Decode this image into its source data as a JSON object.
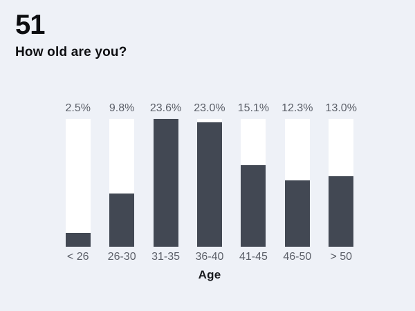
{
  "page": {
    "background_color": "#eef1f7"
  },
  "header": {
    "question_number": "51",
    "question_title": "How old are you?"
  },
  "chart_data": {
    "type": "bar",
    "title": "How old are you?",
    "categories": [
      "< 26",
      "26-30",
      "31-35",
      "36-40",
      "41-45",
      "46-50",
      "> 50"
    ],
    "values": [
      2.5,
      9.8,
      23.6,
      23.0,
      15.1,
      12.3,
      13.0
    ],
    "value_labels": [
      "2.5%",
      "9.8%",
      "23.6%",
      "23.0%",
      "15.1%",
      "12.3%",
      "13.0%"
    ],
    "xlabel": "Age",
    "ylabel": "",
    "ylim": [
      0,
      23.6
    ],
    "grid": false,
    "legend": false,
    "bar_color": "#424853",
    "track_color": "#ffffff",
    "label_color": "#5b5f68"
  }
}
